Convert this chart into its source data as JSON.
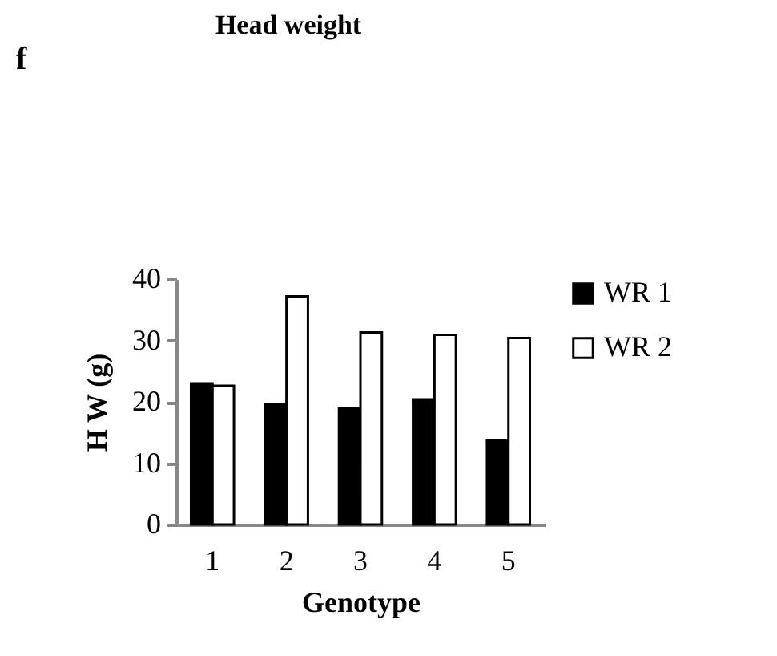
{
  "chart_data": {
    "type": "bar",
    "title": "Head weight",
    "xlabel": "Genotype",
    "ylabel": "H W (g)",
    "annotations": [
      "f"
    ],
    "categories": [
      "1",
      "2",
      "3",
      "4",
      "5"
    ],
    "series": [
      {
        "name": "WR 1",
        "color": "#000000",
        "values": [
          23.0,
          19.6,
          18.9,
          20.4,
          13.7
        ]
      },
      {
        "name": "WR 2",
        "color": "#ffffff",
        "values": [
          22.6,
          37.2,
          31.3,
          30.9,
          30.4
        ]
      }
    ],
    "ylim": [
      0,
      40
    ],
    "yticks": [
      0,
      10,
      20,
      30,
      40
    ],
    "grid": false,
    "legend": "right"
  }
}
